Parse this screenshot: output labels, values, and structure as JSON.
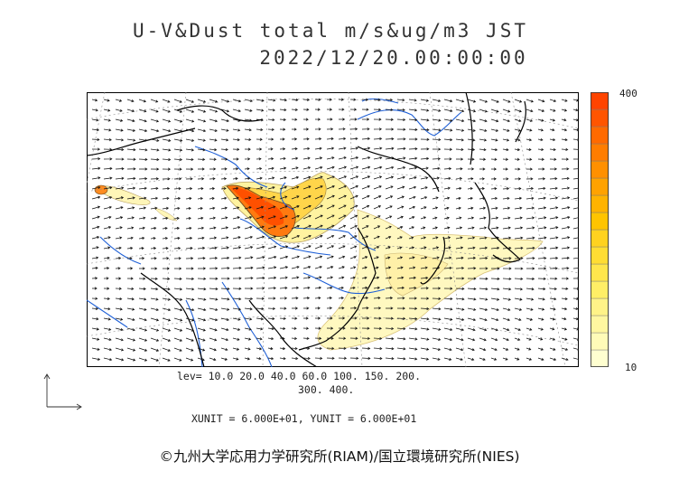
{
  "title": {
    "line1": "U-V&Dust total m/s&ug/m3 JST",
    "line2": "2022/12/20.00:00:00"
  },
  "colorbar": {
    "max_label": "400",
    "min_label": "10",
    "colors": [
      "#ffffd0",
      "#fffbb8",
      "#fff7a0",
      "#fff388",
      "#ffee66",
      "#ffe64c",
      "#ffdd33",
      "#ffd21f",
      "#ffc400",
      "#ffb300",
      "#ffa200",
      "#ff9000",
      "#ff7d00",
      "#ff6a00",
      "#ff5500",
      "#ff4400"
    ]
  },
  "legend": {
    "levels_line1": "lev= 10.0 20.0 40.0 60.0 100. 150. 200.",
    "levels_line2": "300. 400.",
    "units": "XUNIT = 6.000E+01, YUNIT = 6.000E+01"
  },
  "copyright": "©九州大学応用力学研究所(RIAM)/国立環境研究所(NIES)",
  "map": {
    "coastline_color": "#000000",
    "river_color": "#1e5fd6",
    "grid_color": "#888888"
  }
}
